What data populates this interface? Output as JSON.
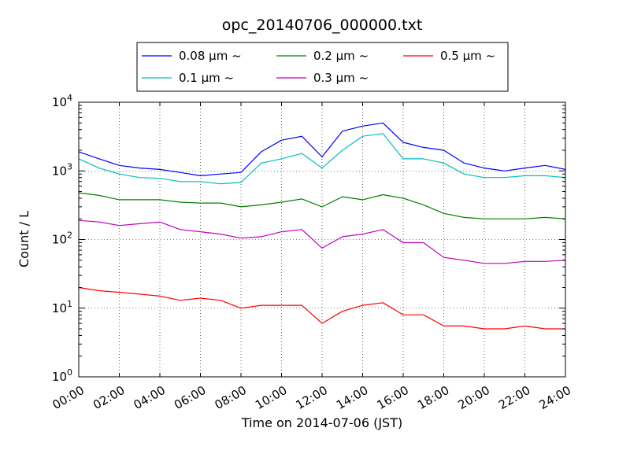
{
  "chart_data": {
    "type": "line",
    "title": "opc_20140706_000000.txt",
    "xlabel": "Time on 2014-07-06 (JST)",
    "ylabel": "Count / L",
    "xlim": [
      "00:00",
      "24:00"
    ],
    "x_ticks": [
      "00:00",
      "02:00",
      "04:00",
      "06:00",
      "08:00",
      "10:00",
      "12:00",
      "14:00",
      "16:00",
      "18:00",
      "20:00",
      "22:00",
      "24:00"
    ],
    "y_scale": "log",
    "ylim": [
      1,
      10000
    ],
    "y_ticks": [
      {
        "base": "10",
        "exp": "0"
      },
      {
        "base": "10",
        "exp": "1"
      },
      {
        "base": "10",
        "exp": "2"
      },
      {
        "base": "10",
        "exp": "3"
      },
      {
        "base": "10",
        "exp": "4"
      }
    ],
    "grid": true,
    "legend": {
      "placement": "top",
      "columns": 3
    },
    "x": [
      "00:00",
      "01:00",
      "02:00",
      "03:00",
      "04:00",
      "05:00",
      "06:00",
      "07:00",
      "08:00",
      "09:00",
      "10:00",
      "11:00",
      "12:00",
      "13:00",
      "14:00",
      "15:00",
      "16:00",
      "17:00",
      "18:00",
      "19:00",
      "20:00",
      "21:00",
      "22:00",
      "23:00",
      "24:00"
    ],
    "series": [
      {
        "name": "0.08 μm ~",
        "color": "#0000ff",
        "values": [
          1900,
          1500,
          1200,
          1100,
          1050,
          950,
          850,
          900,
          950,
          1900,
          2800,
          3200,
          1600,
          3800,
          4500,
          5000,
          2600,
          2200,
          2000,
          1300,
          1100,
          1000,
          1100,
          1200,
          1050
        ]
      },
      {
        "name": "0.1 μm ~",
        "color": "#00bfbf",
        "values": [
          1500,
          1100,
          900,
          800,
          780,
          700,
          700,
          650,
          680,
          1300,
          1500,
          1800,
          1100,
          2000,
          3200,
          3500,
          1500,
          1500,
          1300,
          900,
          800,
          800,
          850,
          850,
          800
        ]
      },
      {
        "name": "0.2 μm ~",
        "color": "#008000",
        "values": [
          480,
          440,
          380,
          380,
          380,
          350,
          340,
          340,
          300,
          320,
          350,
          390,
          300,
          420,
          380,
          450,
          400,
          320,
          240,
          210,
          200,
          200,
          200,
          210,
          200
        ]
      },
      {
        "name": "0.3 μm ~",
        "color": "#bf00bf",
        "values": [
          190,
          180,
          160,
          170,
          180,
          140,
          130,
          120,
          105,
          110,
          130,
          140,
          75,
          110,
          120,
          140,
          90,
          90,
          55,
          50,
          45,
          45,
          48,
          48,
          50
        ]
      },
      {
        "name": "0.5 μm ~",
        "color": "#ff0000",
        "values": [
          20,
          18,
          17,
          16,
          15,
          13,
          14,
          13,
          10,
          11,
          11,
          11,
          6,
          9,
          11,
          12,
          8,
          8,
          5.5,
          5.5,
          5,
          5,
          5.5,
          5,
          5
        ]
      }
    ]
  }
}
